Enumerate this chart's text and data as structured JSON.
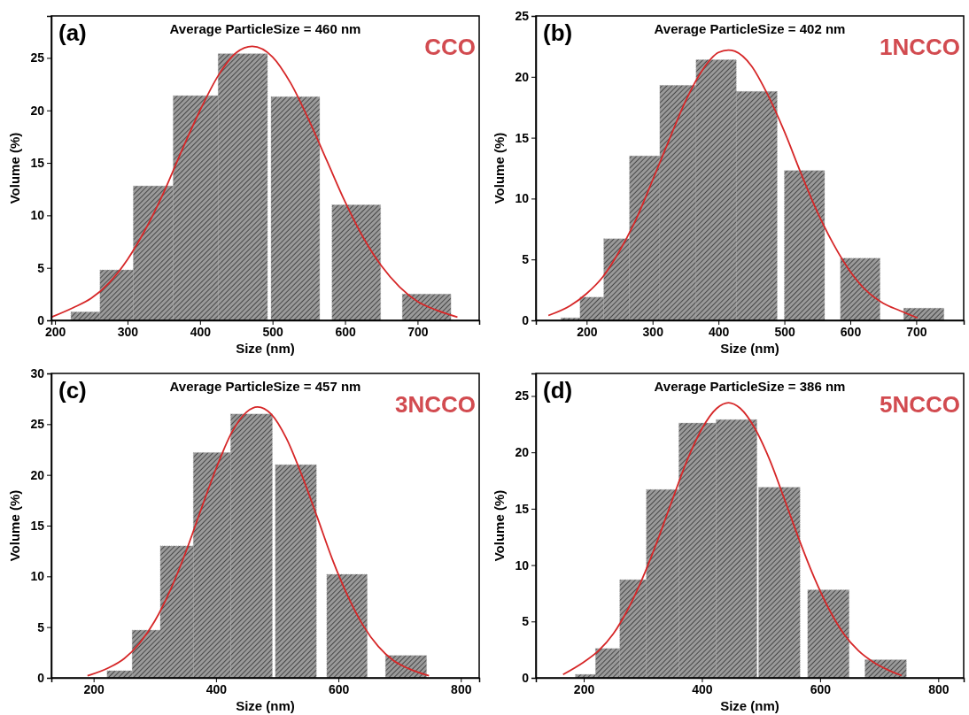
{
  "chart_data": [
    {
      "type": "histogram",
      "xlabel": "Size (nm)",
      "ylabel": "Volume (%)",
      "annotations": [
        "(a)",
        "Average ParticleSize = 460 nm",
        "CCO"
      ],
      "color": "#9a9a9a",
      "bins": [
        222,
        262,
        308,
        363,
        425,
        493,
        498,
        565,
        582,
        649,
        679,
        746
      ],
      "values": [
        0.8,
        4.8,
        12.8,
        21.4,
        25.4,
        0,
        21.3,
        0,
        11.0,
        0,
        2.5
      ],
      "series": [
        {
          "type": "line",
          "color": "#d62728",
          "x": [
            195,
            225,
            250,
            275,
            300,
            325,
            350,
            375,
            400,
            425,
            450,
            472,
            500,
            525,
            550,
            575,
            600,
            625,
            650,
            675,
            700,
            725,
            755
          ],
          "values": [
            0.3,
            1.2,
            2.1,
            3.6,
            5.8,
            8.7,
            12.2,
            16.2,
            20.0,
            23.3,
            25.5,
            26.1,
            25.1,
            22.6,
            19.1,
            15.2,
            11.3,
            7.9,
            5.2,
            3.2,
            1.8,
            1.0,
            0.3
          ]
        }
      ],
      "xlim": [
        195,
        785
      ],
      "xticks": [
        200,
        300,
        400,
        500,
        600,
        700
      ],
      "ylim": [
        0,
        29
      ],
      "yticks": [
        0,
        5,
        10,
        15,
        20,
        25
      ]
    },
    {
      "type": "histogram",
      "xlabel": "Size (nm)",
      "ylabel": "Volume (%)",
      "annotations": [
        "(b)",
        "Average ParticleSize = 402 nm",
        "1NCCO"
      ],
      "color": "#9a9a9a",
      "bins": [
        161,
        190,
        226,
        265,
        311,
        366,
        427,
        489,
        500,
        561,
        585,
        645,
        681,
        742
      ],
      "values": [
        0.2,
        1.9,
        6.7,
        13.5,
        19.3,
        21.4,
        18.8,
        0,
        12.3,
        0,
        5.1,
        0,
        1.0
      ],
      "series": [
        {
          "type": "line",
          "color": "#d62728",
          "x": [
            142,
            175,
            200,
            225,
            250,
            275,
            300,
            325,
            350,
            375,
            400,
            415,
            425,
            450,
            475,
            500,
            525,
            550,
            575,
            600,
            625,
            650,
            675,
            702
          ],
          "values": [
            0.4,
            1.2,
            2.2,
            3.6,
            5.7,
            8.3,
            11.5,
            14.8,
            18.0,
            20.5,
            22.0,
            22.2,
            22.1,
            20.9,
            18.5,
            15.5,
            12.1,
            8.9,
            6.2,
            4.0,
            2.4,
            1.4,
            0.8,
            0.2
          ]
        }
      ],
      "xlim": [
        123,
        772
      ],
      "xticks": [
        200,
        300,
        400,
        500,
        600,
        700
      ],
      "ylim": [
        0,
        25
      ],
      "yticks": [
        0,
        5,
        10,
        15,
        20,
        25
      ]
    },
    {
      "type": "histogram",
      "xlabel": "Size (nm)",
      "ylabel": "Volume (%)",
      "annotations": [
        "(c)",
        "Average ParticleSize = 457 nm",
        "3NCCO"
      ],
      "color": "#9a9a9a",
      "bins": [
        222,
        263,
        309,
        363,
        424,
        492,
        497,
        564,
        581,
        647,
        677,
        744
      ],
      "values": [
        0.7,
        4.7,
        13.0,
        22.2,
        26.0,
        0,
        21.0,
        0,
        10.2,
        0,
        2.2
      ],
      "series": [
        {
          "type": "line",
          "color": "#d62728",
          "x": [
            190,
            225,
            250,
            275,
            300,
            325,
            350,
            375,
            400,
            425,
            450,
            468,
            490,
            515,
            540,
            565,
            590,
            615,
            640,
            665,
            690,
            715,
            748
          ],
          "values": [
            0.2,
            1.0,
            1.9,
            3.4,
            5.6,
            8.6,
            12.3,
            16.5,
            20.6,
            24.1,
            26.2,
            26.7,
            26.0,
            23.6,
            20.0,
            15.9,
            11.7,
            8.1,
            5.2,
            3.1,
            1.7,
            0.9,
            0.2
          ]
        }
      ],
      "xlim": [
        131,
        830
      ],
      "xticks": [
        200,
        400,
        600,
        800
      ],
      "ylim": [
        0,
        30
      ],
      "yticks": [
        0,
        5,
        10,
        15,
        20,
        25,
        30
      ]
    },
    {
      "type": "histogram",
      "xlabel": "Size (nm)",
      "ylabel": "Volume (%)",
      "annotations": [
        "(d)",
        "Average ParticleSize = 386 nm",
        "5NCCO"
      ],
      "color": "#9a9a9a",
      "bins": [
        186,
        220,
        261,
        306,
        361,
        424,
        493,
        496,
        566,
        579,
        649,
        676,
        746
      ],
      "values": [
        0.3,
        2.6,
        8.7,
        16.7,
        22.6,
        22.9,
        0,
        16.9,
        0,
        7.8,
        0,
        1.6
      ],
      "series": [
        {
          "type": "line",
          "color": "#d62728",
          "x": [
            165,
            200,
            225,
            250,
            275,
            300,
            325,
            350,
            375,
            400,
            425,
            445,
            465,
            490,
            515,
            540,
            565,
            590,
            615,
            640,
            665,
            690,
            715,
            738
          ],
          "values": [
            0.3,
            1.4,
            2.4,
            3.9,
            6.1,
            8.9,
            12.2,
            15.8,
            19.3,
            22.1,
            23.9,
            24.4,
            23.9,
            22.1,
            19.3,
            15.8,
            12.2,
            8.9,
            6.1,
            3.9,
            2.4,
            1.4,
            0.7,
            0.2
          ]
        }
      ],
      "xlim": [
        119,
        843
      ],
      "xticks": [
        200,
        400,
        600,
        800
      ],
      "ylim": [
        0,
        27
      ],
      "yticks": [
        0,
        5,
        10,
        15,
        20,
        25
      ]
    }
  ]
}
